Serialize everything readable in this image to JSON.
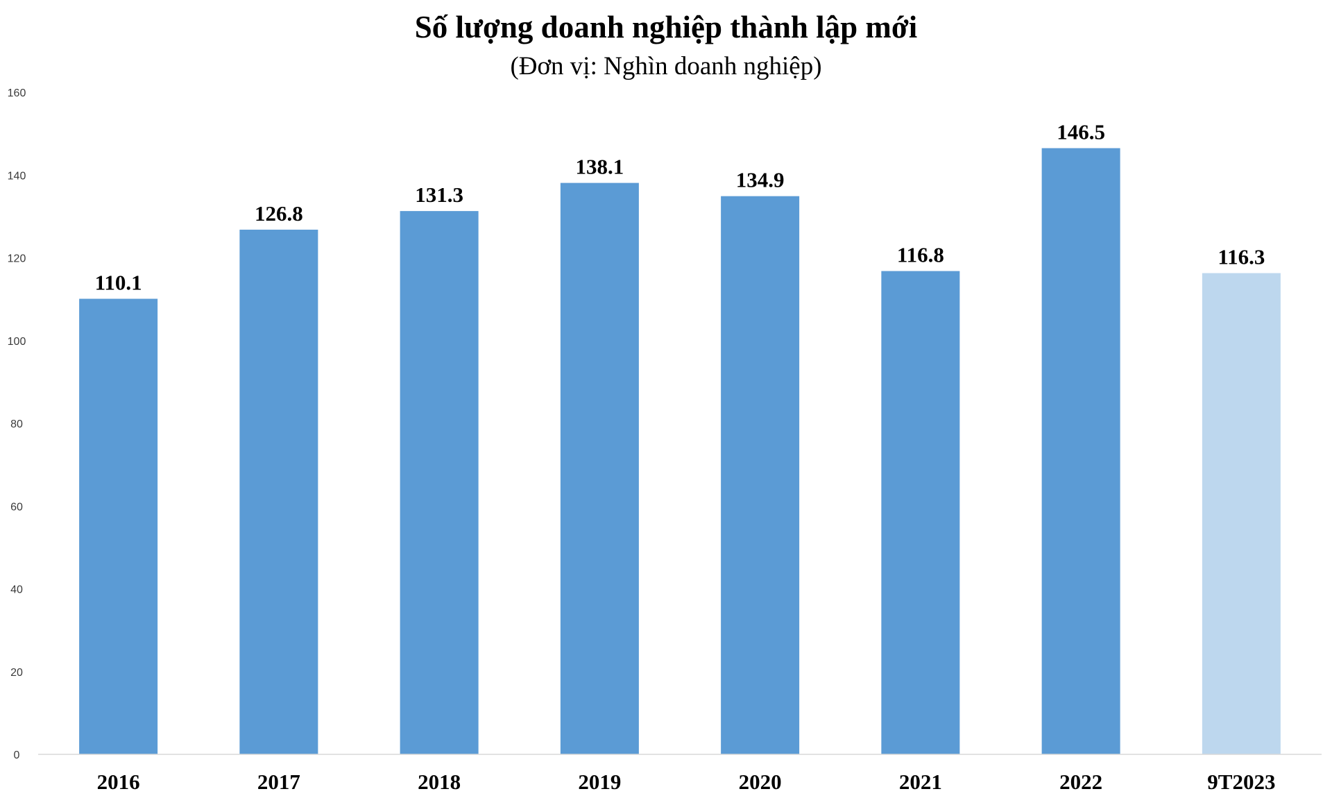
{
  "chart_data": {
    "type": "bar",
    "title": "Số lượng doanh nghiệp thành lập mới",
    "subtitle": "(Đơn vị: Nghìn doanh nghiệp)",
    "categories": [
      "2016",
      "2017",
      "2018",
      "2019",
      "2020",
      "2021",
      "2022",
      "9T2023"
    ],
    "values": [
      110.1,
      126.8,
      131.3,
      138.1,
      134.9,
      116.8,
      146.5,
      116.3
    ],
    "data_labels": [
      "110.1",
      "126.8",
      "131.3",
      "138.1",
      "134.9",
      "116.8",
      "146.5",
      "116.3"
    ],
    "ylim": [
      0,
      160
    ],
    "yticks": [
      0,
      20,
      40,
      60,
      80,
      100,
      120,
      140,
      160
    ],
    "grid": false,
    "legend": "none",
    "colors": {
      "bar": "#5b9bd5",
      "bar_highlight": "#bdd7ee",
      "axis": "#d9d9d9"
    },
    "highlight_index": 7
  }
}
